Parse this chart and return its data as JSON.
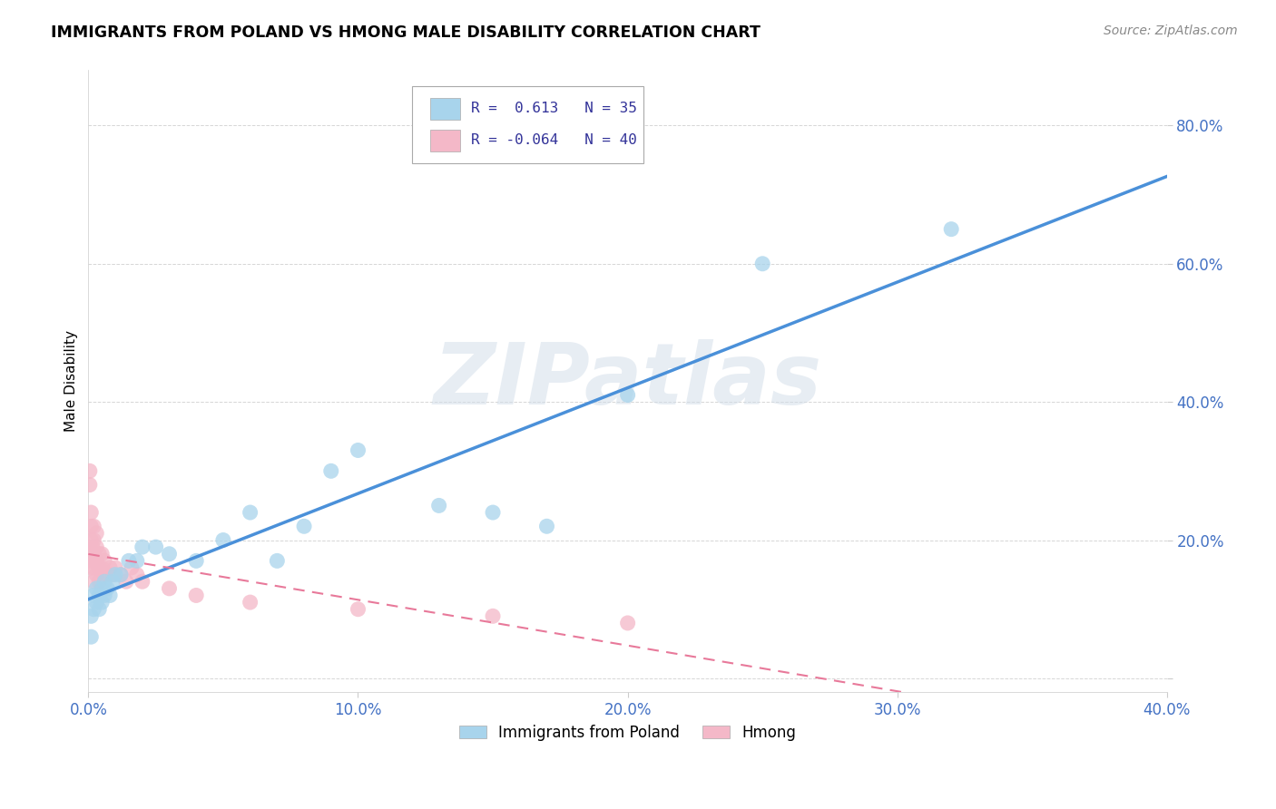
{
  "title": "IMMIGRANTS FROM POLAND VS HMONG MALE DISABILITY CORRELATION CHART",
  "source": "Source: ZipAtlas.com",
  "ylabel": "Male Disability",
  "xlim": [
    0.0,
    0.4
  ],
  "ylim": [
    -0.02,
    0.88
  ],
  "xticks": [
    0.0,
    0.1,
    0.2,
    0.3,
    0.4
  ],
  "xtick_labels": [
    "0.0%",
    "10.0%",
    "20.0%",
    "30.0%",
    "40.0%"
  ],
  "yticks": [
    0.0,
    0.2,
    0.4,
    0.6,
    0.8
  ],
  "ytick_labels": [
    "",
    "20.0%",
    "40.0%",
    "60.0%",
    "80.0%"
  ],
  "poland_R": 0.613,
  "poland_N": 35,
  "hmong_R": -0.064,
  "hmong_N": 40,
  "poland_color": "#a8d4ec",
  "hmong_color": "#f4b8c8",
  "poland_line_color": "#4a90d9",
  "hmong_line_color": "#e8799a",
  "watermark_text": "ZIPatlas",
  "poland_x": [
    0.001,
    0.001,
    0.002,
    0.002,
    0.003,
    0.003,
    0.004,
    0.004,
    0.005,
    0.005,
    0.006,
    0.006,
    0.007,
    0.008,
    0.009,
    0.01,
    0.012,
    0.015,
    0.018,
    0.02,
    0.025,
    0.03,
    0.04,
    0.05,
    0.06,
    0.07,
    0.08,
    0.09,
    0.1,
    0.13,
    0.15,
    0.17,
    0.2,
    0.25,
    0.32
  ],
  "poland_y": [
    0.09,
    0.06,
    0.12,
    0.1,
    0.11,
    0.13,
    0.1,
    0.12,
    0.11,
    0.13,
    0.12,
    0.14,
    0.13,
    0.12,
    0.14,
    0.15,
    0.15,
    0.17,
    0.17,
    0.19,
    0.19,
    0.18,
    0.17,
    0.2,
    0.24,
    0.17,
    0.22,
    0.3,
    0.33,
    0.25,
    0.24,
    0.22,
    0.41,
    0.6,
    0.65
  ],
  "hmong_x": [
    0.0005,
    0.0005,
    0.001,
    0.001,
    0.001,
    0.001,
    0.001,
    0.0015,
    0.0015,
    0.002,
    0.002,
    0.002,
    0.002,
    0.002,
    0.003,
    0.003,
    0.003,
    0.003,
    0.004,
    0.004,
    0.004,
    0.005,
    0.005,
    0.006,
    0.006,
    0.007,
    0.008,
    0.009,
    0.01,
    0.012,
    0.014,
    0.016,
    0.018,
    0.02,
    0.03,
    0.04,
    0.06,
    0.1,
    0.15,
    0.2
  ],
  "hmong_y": [
    0.28,
    0.3,
    0.16,
    0.18,
    0.2,
    0.22,
    0.24,
    0.17,
    0.19,
    0.14,
    0.16,
    0.18,
    0.2,
    0.22,
    0.15,
    0.17,
    0.19,
    0.21,
    0.14,
    0.16,
    0.18,
    0.16,
    0.18,
    0.15,
    0.17,
    0.15,
    0.16,
    0.15,
    0.16,
    0.15,
    0.14,
    0.16,
    0.15,
    0.14,
    0.13,
    0.12,
    0.11,
    0.1,
    0.09,
    0.08
  ]
}
